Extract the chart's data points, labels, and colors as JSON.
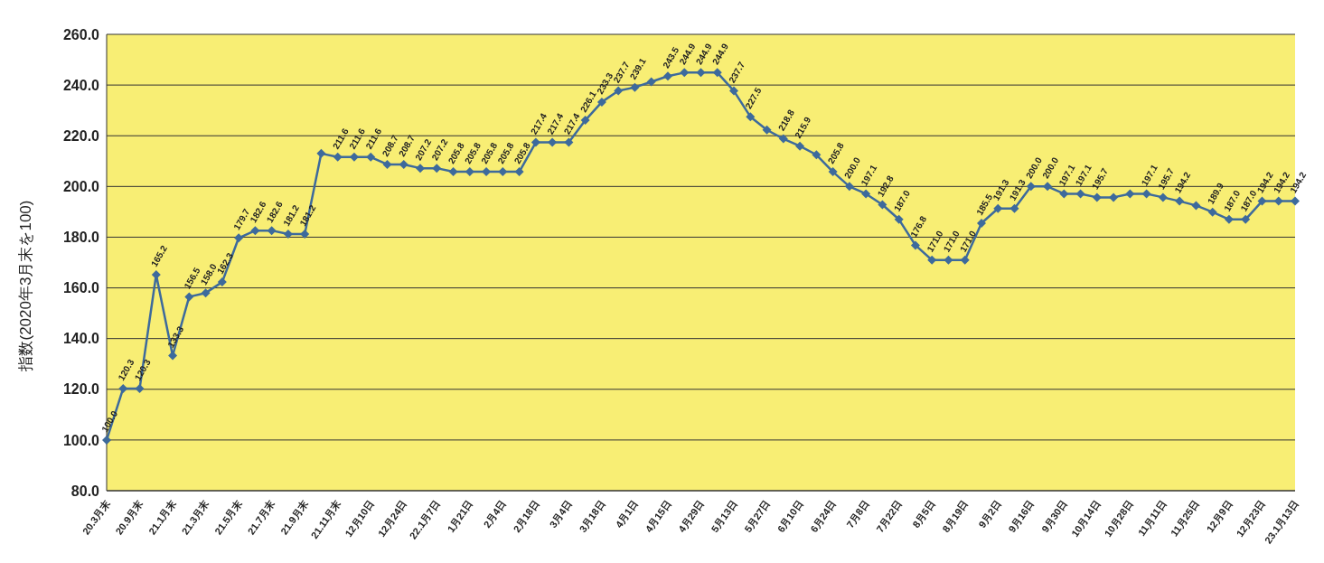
{
  "chart_data": {
    "type": "line",
    "ylabel": "指数(2020年3月末を100)",
    "categories": [
      "20.3月末",
      null,
      "20.9月末",
      null,
      "21.1月末",
      null,
      "21.3月末",
      null,
      "21.5月末",
      null,
      "21.7月末",
      null,
      "21.9月末",
      null,
      "21.11月末",
      null,
      "12月10日",
      null,
      "12月24日",
      null,
      "22.1月7日",
      null,
      "1月21日",
      null,
      "2月4日",
      null,
      "2月18日",
      null,
      "3月4日",
      null,
      "3月18日",
      null,
      "4月1日",
      null,
      "4月15日",
      null,
      "4月29日",
      null,
      "5月13日",
      null,
      "5月27日",
      null,
      "6月10日",
      null,
      "6月24日",
      null,
      "7月8日",
      null,
      "7月22日",
      null,
      "8月5日",
      null,
      "8月19日",
      null,
      "9月2日",
      null,
      "9月16日",
      null,
      "9月30日",
      null,
      "10月14日",
      null,
      "10月28日",
      null,
      "11月11日",
      null,
      "11月25日",
      null,
      "12月9日",
      null,
      "12月23日",
      null,
      "23.1月13日"
    ],
    "values": [
      100.0,
      120.3,
      120.3,
      165.2,
      133.3,
      156.5,
      158.0,
      162.3,
      179.7,
      182.6,
      182.6,
      181.2,
      181.2,
      213.0,
      211.6,
      211.6,
      211.6,
      208.7,
      208.7,
      207.2,
      207.2,
      205.8,
      205.8,
      205.8,
      205.8,
      205.8,
      217.4,
      217.4,
      217.4,
      226.1,
      233.3,
      237.7,
      239.1,
      241.3,
      243.5,
      244.9,
      244.9,
      244.9,
      237.7,
      227.5,
      222.3,
      218.8,
      215.9,
      212.5,
      205.8,
      200.0,
      197.1,
      192.8,
      187.0,
      176.8,
      171.0,
      171.0,
      171.0,
      185.5,
      191.3,
      191.3,
      200.0,
      200.0,
      197.1,
      197.1,
      195.7,
      195.7,
      197.1,
      197.1,
      195.7,
      194.2,
      192.5,
      189.9,
      187.0,
      187.0,
      194.2,
      194.2,
      194.2
    ],
    "value_labels": [
      "100.0",
      "120.3",
      "120.3",
      "165.2",
      "133.3",
      "156.5",
      "158.0",
      "162.3",
      "179.7",
      "182.6",
      "182.6",
      "181.2",
      "181.2",
      null,
      "211.6",
      "211.6",
      "211.6",
      "208.7",
      "208.7",
      "207.2",
      "207.2",
      "205.8",
      "205.8",
      "205.8",
      "205.8",
      "205.8",
      "217.4",
      "217.4",
      "217.4",
      "226.1",
      "233.3",
      "237.7",
      "239.1",
      null,
      "243.5",
      "244.9",
      "244.9",
      "244.9",
      "237.7",
      "227.5",
      null,
      "218.8",
      "215.9",
      null,
      "205.8",
      "200.0",
      "197.1",
      "192.8",
      "187.0",
      "176.8",
      "171.0",
      "171.0",
      "171.0",
      "185.5",
      "191.3",
      "191.3",
      "200.0",
      "200.0",
      "197.1",
      "197.1",
      "195.7",
      null,
      null,
      "197.1",
      "195.7",
      "194.2",
      null,
      "189.9",
      "187.0",
      "187.0",
      "194.2",
      "194.2",
      "194.2"
    ],
    "color": "#3d6a9c",
    "marker": "diamond",
    "line_style": "solid",
    "grid": "y",
    "legend": false,
    "ylim": [
      80,
      260
    ],
    "yticks": [
      {
        "value": 80,
        "label": "80.0"
      },
      {
        "value": 100,
        "label": "100.0"
      },
      {
        "value": 120,
        "label": "120.0"
      },
      {
        "value": 140,
        "label": "140.0"
      },
      {
        "value": 160,
        "label": "160.0"
      },
      {
        "value": 180,
        "label": "180.0"
      },
      {
        "value": 200,
        "label": "200.0"
      },
      {
        "value": 220,
        "label": "220.0"
      },
      {
        "value": 240,
        "label": "240.0"
      },
      {
        "value": 260,
        "label": "260.0"
      }
    ]
  }
}
